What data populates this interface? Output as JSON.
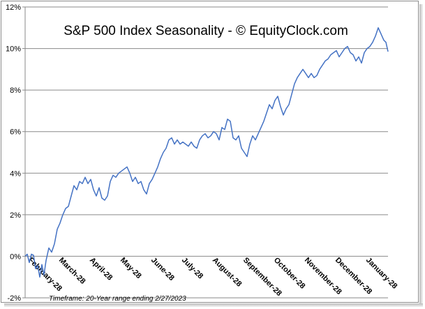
{
  "chart_data": {
    "type": "line",
    "title": "S&P 500 Index Seasonality - © EquityClock.com",
    "footnote": "Timeframe: 20-Year range  ending  2/27/2023",
    "xlabel": "",
    "ylabel": "",
    "ylim": [
      -2,
      12
    ],
    "xlim": [
      0,
      52
    ],
    "y_ticks": [
      -2,
      0,
      2,
      4,
      6,
      8,
      10,
      12
    ],
    "y_tick_labels": [
      "-2%",
      "0%",
      "2%",
      "4%",
      "6%",
      "8%",
      "10%",
      "12%"
    ],
    "x_tick_labels": [
      "February-28",
      "March-28",
      "April-28",
      "May-28",
      "June-28",
      "July-28",
      "August-28",
      "September-28",
      "October-28",
      "November-28",
      "December-28",
      "January-28"
    ],
    "x_tick_positions": [
      0.4,
      4.8,
      9.2,
      13.6,
      18.0,
      22.4,
      26.8,
      31.2,
      35.6,
      40.0,
      44.4,
      48.8
    ],
    "grid": "horizontal",
    "line_color": "#4472c4",
    "series": [
      {
        "name": "S&P 500 Index Seasonality",
        "x": [
          0,
          0.3,
          0.6,
          0.9,
          1.2,
          1.5,
          1.8,
          2.1,
          2.4,
          2.7,
          3.0,
          3.4,
          3.8,
          4.2,
          4.6,
          5.0,
          5.4,
          5.8,
          6.2,
          6.6,
          7.0,
          7.4,
          7.8,
          8.2,
          8.6,
          9.0,
          9.4,
          9.8,
          10.2,
          10.6,
          11.0,
          11.4,
          11.8,
          12.2,
          12.6,
          13.0,
          13.4,
          13.8,
          14.2,
          14.6,
          15.0,
          15.4,
          15.8,
          16.2,
          16.6,
          17.0,
          17.4,
          17.8,
          18.2,
          18.6,
          19.0,
          19.4,
          19.8,
          20.2,
          20.6,
          21.0,
          21.4,
          21.8,
          22.2,
          22.6,
          23.0,
          23.4,
          23.8,
          24.2,
          24.6,
          25.0,
          25.4,
          25.8,
          26.2,
          26.6,
          27.0,
          27.4,
          27.8,
          28.2,
          28.6,
          29.0,
          29.4,
          29.8,
          30.2,
          30.6,
          31.0,
          31.4,
          31.8,
          32.2,
          32.6,
          33.0,
          33.4,
          33.8,
          34.2,
          34.6,
          35.0,
          35.4,
          35.8,
          36.2,
          36.6,
          37.0,
          37.4,
          37.8,
          38.2,
          38.6,
          39.0,
          39.4,
          39.8,
          40.2,
          40.6,
          41.0,
          41.4,
          41.8,
          42.2,
          42.6,
          43.0,
          43.4,
          43.8,
          44.2,
          44.6,
          45.0,
          45.4,
          45.8,
          46.2,
          46.6,
          47.0,
          47.4,
          47.8,
          48.2,
          48.6,
          49.0,
          49.4,
          49.8,
          50.2,
          50.6,
          51.0,
          51.4,
          51.7,
          52.0
        ],
        "values": [
          0.0,
          0.1,
          -0.3,
          0.1,
          0.05,
          -0.6,
          -0.45,
          -1.0,
          -0.4,
          -0.9,
          -0.2,
          0.4,
          0.2,
          0.6,
          1.3,
          1.6,
          2.0,
          2.3,
          2.4,
          2.9,
          3.4,
          3.2,
          3.6,
          3.5,
          3.8,
          3.5,
          3.7,
          3.2,
          2.9,
          3.3,
          2.8,
          2.7,
          2.9,
          3.6,
          3.9,
          3.8,
          4.0,
          4.1,
          4.2,
          4.3,
          4.0,
          3.6,
          3.8,
          3.5,
          3.6,
          3.2,
          3.0,
          3.5,
          3.7,
          4.0,
          4.3,
          4.7,
          5.0,
          5.2,
          5.6,
          5.7,
          5.4,
          5.6,
          5.4,
          5.5,
          5.4,
          5.3,
          5.5,
          5.3,
          5.2,
          5.6,
          5.8,
          5.9,
          5.7,
          5.8,
          6.0,
          5.9,
          5.6,
          6.2,
          6.1,
          6.6,
          6.5,
          5.7,
          5.6,
          5.8,
          5.2,
          5.0,
          4.8,
          5.4,
          5.8,
          5.6,
          5.9,
          6.2,
          6.5,
          6.9,
          7.3,
          7.1,
          7.5,
          7.7,
          7.2,
          6.8,
          7.1,
          7.3,
          7.8,
          8.3,
          8.6,
          8.8,
          9.0,
          8.8,
          8.6,
          8.8,
          8.6,
          8.7,
          9.0,
          9.2,
          9.4,
          9.5,
          9.7,
          9.8,
          9.9,
          9.6,
          9.8,
          10.0,
          10.1,
          9.8,
          9.7,
          9.4,
          9.6,
          9.3,
          9.8,
          10.0,
          10.1,
          10.3,
          10.6,
          11.0,
          10.7,
          10.4,
          10.3,
          9.85
        ]
      }
    ]
  }
}
